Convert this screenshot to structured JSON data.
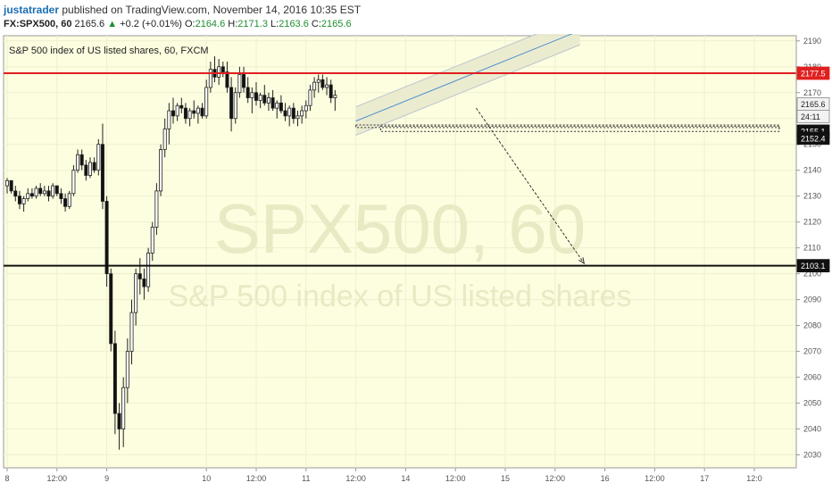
{
  "header": {
    "author": "justatrader",
    "published": "published on TradingView.com, November 14, 2016 10:35 EST",
    "symbol": "FX:SPX500, 60",
    "last": "2165.6",
    "change": "+0.2 (+0.01%)",
    "o_label": "O:",
    "o_value": "2164.6",
    "h_label": "H:",
    "h_value": "2171.3",
    "l_label": "L:",
    "l_value": "2163.6",
    "c_label": "C:",
    "c_value": "2165.6"
  },
  "chart_data": {
    "type": "candlestick",
    "title": "S&P 500 index of US listed shares, 60, FXCM",
    "watermark_main": "SPX500, 60",
    "watermark_sub": "S&P 500 index of US listed shares",
    "ylim": [
      2025,
      2192
    ],
    "y_ticks": [
      2030,
      2040,
      2050,
      2060,
      2070,
      2080,
      2090,
      2100,
      2110,
      2120,
      2130,
      2140,
      2150,
      2160,
      2170,
      2180,
      2190
    ],
    "x_ticks": [
      {
        "label": "8",
        "bar": 0
      },
      {
        "label": "12:00",
        "bar": 12
      },
      {
        "label": "9",
        "bar": 24
      },
      {
        "label": "10",
        "bar": 48
      },
      {
        "label": "12:00",
        "bar": 60
      },
      {
        "label": "11",
        "bar": 72
      },
      {
        "label": "12:00",
        "bar": 84
      },
      {
        "label": "14",
        "bar": 96
      },
      {
        "label": "12:00",
        "bar": 108
      },
      {
        "label": "15",
        "bar": 120
      },
      {
        "label": "12:00",
        "bar": 132
      },
      {
        "label": "16",
        "bar": 144
      },
      {
        "label": "12:00",
        "bar": 156
      },
      {
        "label": "17",
        "bar": 168
      },
      {
        "label": "12:0",
        "bar": 180
      }
    ],
    "horizontal_lines": [
      {
        "price": 2177.5,
        "color": "#e02020",
        "label": "2177.5"
      },
      {
        "price": 2103.1,
        "color": "#111111",
        "label": "2103.1"
      }
    ],
    "price_labels": [
      {
        "price": 2165.6,
        "text": "2165.6",
        "style": "light"
      },
      {
        "price": 2160.8,
        "text": "24:11",
        "style": "light"
      },
      {
        "price": 2155.1,
        "text": "2155.1",
        "style": "dark"
      },
      {
        "price": 2152.4,
        "text": "2152.4",
        "style": "dark"
      }
    ],
    "candles": [
      [
        2134,
        2137,
        2131,
        2136
      ],
      [
        2136,
        2136,
        2131,
        2132
      ],
      [
        2132,
        2134,
        2128,
        2130
      ],
      [
        2130,
        2132,
        2125,
        2127
      ],
      [
        2127,
        2130,
        2124,
        2129
      ],
      [
        2129,
        2133,
        2128,
        2131
      ],
      [
        2131,
        2133,
        2129,
        2130
      ],
      [
        2130,
        2134,
        2129,
        2133
      ],
      [
        2133,
        2135,
        2130,
        2131
      ],
      [
        2131,
        2134,
        2130,
        2132
      ],
      [
        2132,
        2134,
        2128,
        2130
      ],
      [
        2130,
        2135,
        2129,
        2134
      ],
      [
        2134,
        2134,
        2130,
        2131
      ],
      [
        2131,
        2133,
        2127,
        2129
      ],
      [
        2129,
        2131,
        2124,
        2126
      ],
      [
        2126,
        2132,
        2125,
        2131
      ],
      [
        2131,
        2142,
        2130,
        2140
      ],
      [
        2140,
        2148,
        2139,
        2146
      ],
      [
        2146,
        2148,
        2140,
        2142
      ],
      [
        2142,
        2144,
        2136,
        2138
      ],
      [
        2138,
        2145,
        2137,
        2143
      ],
      [
        2143,
        2145,
        2139,
        2140
      ],
      [
        2140,
        2152,
        2138,
        2150
      ],
      [
        2150,
        2158,
        2125,
        2128
      ],
      [
        2128,
        2130,
        2095,
        2100
      ],
      [
        2100,
        2102,
        2070,
        2073
      ],
      [
        2073,
        2078,
        2038,
        2046
      ],
      [
        2046,
        2050,
        2032,
        2040
      ],
      [
        2040,
        2060,
        2033,
        2056
      ],
      [
        2056,
        2075,
        2050,
        2070
      ],
      [
        2070,
        2090,
        2065,
        2085
      ],
      [
        2085,
        2102,
        2080,
        2100
      ],
      [
        2100,
        2106,
        2092,
        2098
      ],
      [
        2098,
        2102,
        2090,
        2095
      ],
      [
        2095,
        2110,
        2093,
        2108
      ],
      [
        2108,
        2120,
        2105,
        2118
      ],
      [
        2118,
        2135,
        2115,
        2132
      ],
      [
        2132,
        2150,
        2130,
        2148
      ],
      [
        2148,
        2160,
        2145,
        2156
      ],
      [
        2156,
        2166,
        2150,
        2163
      ],
      [
        2163,
        2168,
        2158,
        2161
      ],
      [
        2161,
        2166,
        2159,
        2165
      ],
      [
        2165,
        2168,
        2162,
        2164
      ],
      [
        2164,
        2166,
        2158,
        2160
      ],
      [
        2160,
        2164,
        2157,
        2163
      ],
      [
        2163,
        2167,
        2160,
        2162
      ],
      [
        2162,
        2165,
        2158,
        2164
      ],
      [
        2164,
        2166,
        2160,
        2161
      ],
      [
        2161,
        2175,
        2160,
        2172
      ],
      [
        2172,
        2182,
        2170,
        2179
      ],
      [
        2179,
        2184,
        2174,
        2176
      ],
      [
        2176,
        2183,
        2173,
        2180
      ],
      [
        2180,
        2182,
        2176,
        2178
      ],
      [
        2178,
        2182,
        2170,
        2172
      ],
      [
        2172,
        2176,
        2155,
        2160
      ],
      [
        2160,
        2172,
        2158,
        2170
      ],
      [
        2170,
        2180,
        2168,
        2177
      ],
      [
        2177,
        2180,
        2170,
        2172
      ],
      [
        2172,
        2176,
        2166,
        2168
      ],
      [
        2168,
        2172,
        2162,
        2170
      ],
      [
        2170,
        2174,
        2165,
        2167
      ],
      [
        2167,
        2170,
        2164,
        2169
      ],
      [
        2169,
        2173,
        2165,
        2166
      ],
      [
        2166,
        2170,
        2163,
        2168
      ],
      [
        2168,
        2171,
        2163,
        2164
      ],
      [
        2164,
        2167,
        2160,
        2166
      ],
      [
        2166,
        2169,
        2162,
        2163
      ],
      [
        2163,
        2166,
        2159,
        2161
      ],
      [
        2161,
        2165,
        2157,
        2164
      ],
      [
        2164,
        2166,
        2158,
        2160
      ],
      [
        2160,
        2163,
        2157,
        2161
      ],
      [
        2161,
        2165,
        2158,
        2163
      ],
      [
        2163,
        2167,
        2160,
        2165
      ],
      [
        2165,
        2173,
        2163,
        2171
      ],
      [
        2171,
        2176,
        2168,
        2174
      ],
      [
        2174,
        2177,
        2170,
        2175
      ],
      [
        2175,
        2177,
        2171,
        2172
      ],
      [
        2172,
        2176,
        2169,
        2173
      ],
      [
        2173,
        2175,
        2166,
        2168
      ],
      [
        2168,
        2171,
        2163,
        2169
      ]
    ],
    "channel": {
      "start_bar": 84,
      "end_bar": 138,
      "start_mid": 2159,
      "end_mid": 2194,
      "half_width": 5.5
    },
    "boxes": [
      {
        "bar_start": 84,
        "bar_end": 186,
        "top": 2157.5,
        "bottom": 2156.5
      },
      {
        "bar_start": 90,
        "bar_end": 186,
        "top": 2157,
        "bottom": 2155
      }
    ],
    "projection": {
      "from_bar": 113,
      "from_price": 2164,
      "to_bar": 139,
      "to_price": 2104
    }
  }
}
